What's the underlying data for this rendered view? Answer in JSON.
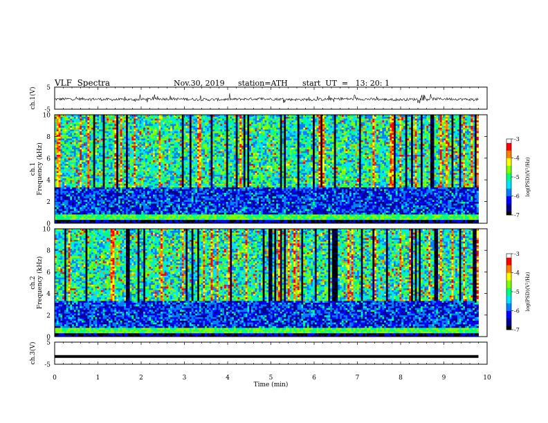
{
  "header": {
    "title": "VLF  Spectra",
    "date": "Nov.30, 2019",
    "station": "station=ATH",
    "start": "start  UT  =   13: 20: 1"
  },
  "colors": {
    "palette": [
      "#000000",
      "#00008b",
      "#0000ff",
      "#0080ff",
      "#00e5ff",
      "#00ff80",
      "#7fff00",
      "#ffff00",
      "#ff8000",
      "#ff0000",
      "#ffffff"
    ]
  },
  "chart_data": [
    {
      "type": "line",
      "panel": "ch1-waveform",
      "ylabel": "ch.1(V)",
      "ylim": [
        -5,
        5
      ],
      "yticks": [
        "5",
        "-5"
      ],
      "xlim": [
        0,
        10
      ],
      "description": "noisy waveform centered near -0.5 V with spikes"
    },
    {
      "type": "heatmap",
      "panel": "ch1-spectrogram",
      "ylabel": "ch.1\nFrequency  (kHz)",
      "ylabel_lines": [
        "ch.1",
        "Frequency  (kHz)"
      ],
      "ylim": [
        0,
        10
      ],
      "yticks": [
        "0",
        "2",
        "4",
        "6",
        "8",
        "10"
      ],
      "xlim": [
        0,
        9.8
      ],
      "colorbar": {
        "label": "log(PSD)(V²/Hz)",
        "range": [
          -7,
          -3
        ],
        "ticks": [
          "-3",
          "-4",
          "-5",
          "-6",
          "-7"
        ]
      }
    },
    {
      "type": "heatmap",
      "panel": "ch2-spectrogram",
      "ylabel_lines": [
        "ch.2",
        "Frequency  (kHz)"
      ],
      "ylim": [
        0,
        10
      ],
      "yticks": [
        "0",
        "2",
        "4",
        "6",
        "8",
        "10"
      ],
      "xlim": [
        0,
        9.8
      ],
      "colorbar": {
        "label": "log(PSD)(V²/Hz)",
        "range": [
          -7,
          -3
        ],
        "ticks": [
          "-3",
          "-4",
          "-5",
          "-6",
          "-7"
        ]
      }
    },
    {
      "type": "line",
      "panel": "ch3-waveform",
      "ylabel": "ch.3(V)",
      "ylim": [
        -5,
        5
      ],
      "yticks": [
        "5",
        "-5"
      ],
      "xlim": [
        0,
        10
      ],
      "series": [
        {
          "x": [
            0,
            9.8
          ],
          "y": [
            -1.5,
            -1.5
          ]
        }
      ]
    }
  ],
  "xaxis": {
    "label": "Time  (min)",
    "ticks": [
      "0",
      "1",
      "2",
      "3",
      "4",
      "5",
      "6",
      "7",
      "8",
      "9",
      "10"
    ]
  }
}
